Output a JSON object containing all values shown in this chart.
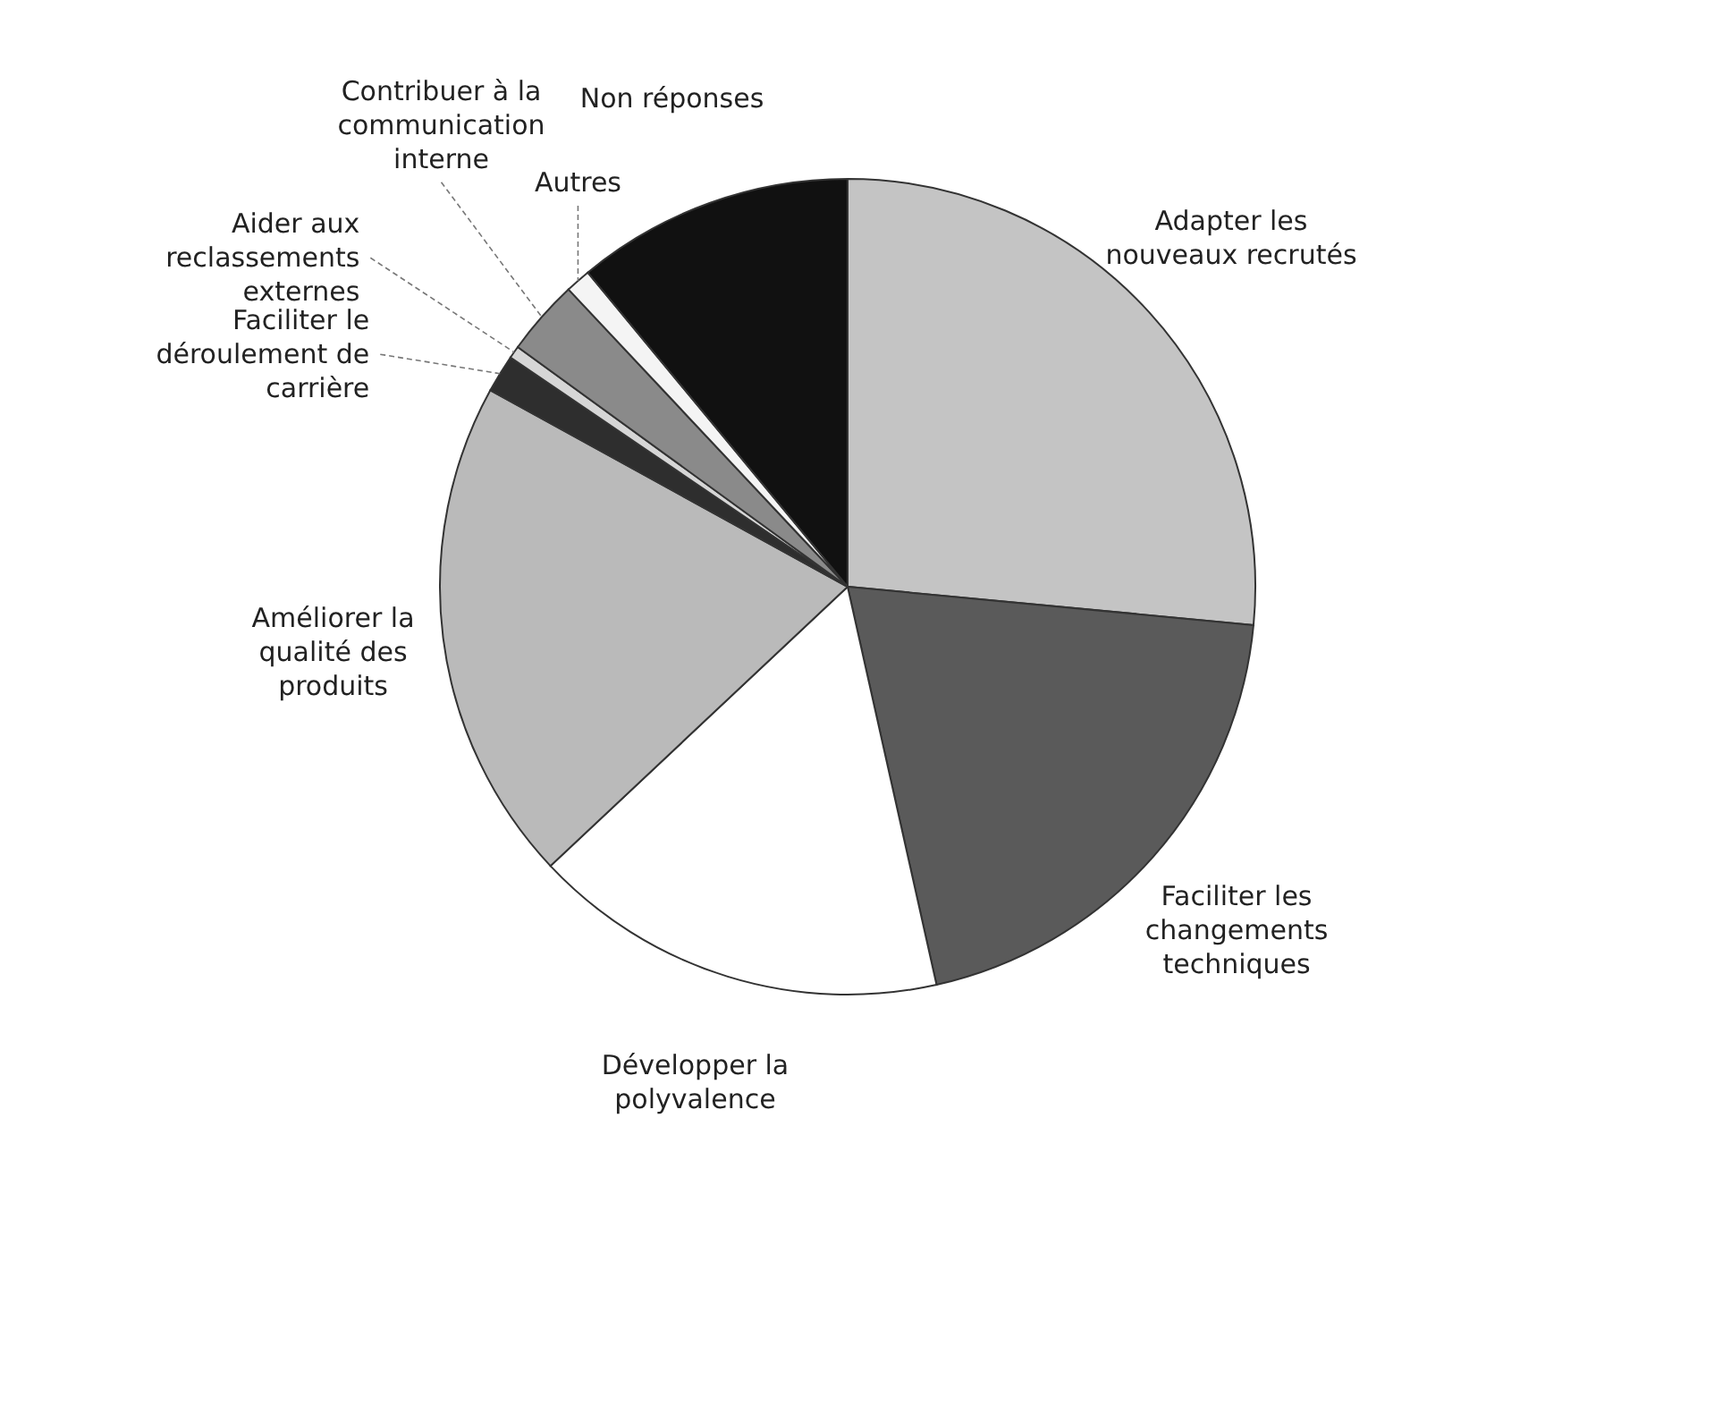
{
  "chart_data": {
    "type": "pie",
    "categories": [
      "Adapter les nouveaux recrutés",
      "Faciliter les changements techniques",
      "Développer la polyvalence",
      "Améliorer la qualité des produits",
      "Faciliter le déroulement de carrière",
      "Aider aux reclassements externes",
      "Contribuer à la communication interne",
      "Autres",
      "Non réponses"
    ],
    "values": [
      26.5,
      20,
      16.5,
      20,
      1.5,
      0.5,
      3,
      1,
      11
    ],
    "colors": [
      "#c4c4c4",
      "#5a5a5a",
      "#ffffff",
      "#bababa",
      "#2e2e2e",
      "#d6d6d6",
      "#8a8a8a",
      "#f4f4f4",
      "#111111"
    ],
    "legend": false
  }
}
